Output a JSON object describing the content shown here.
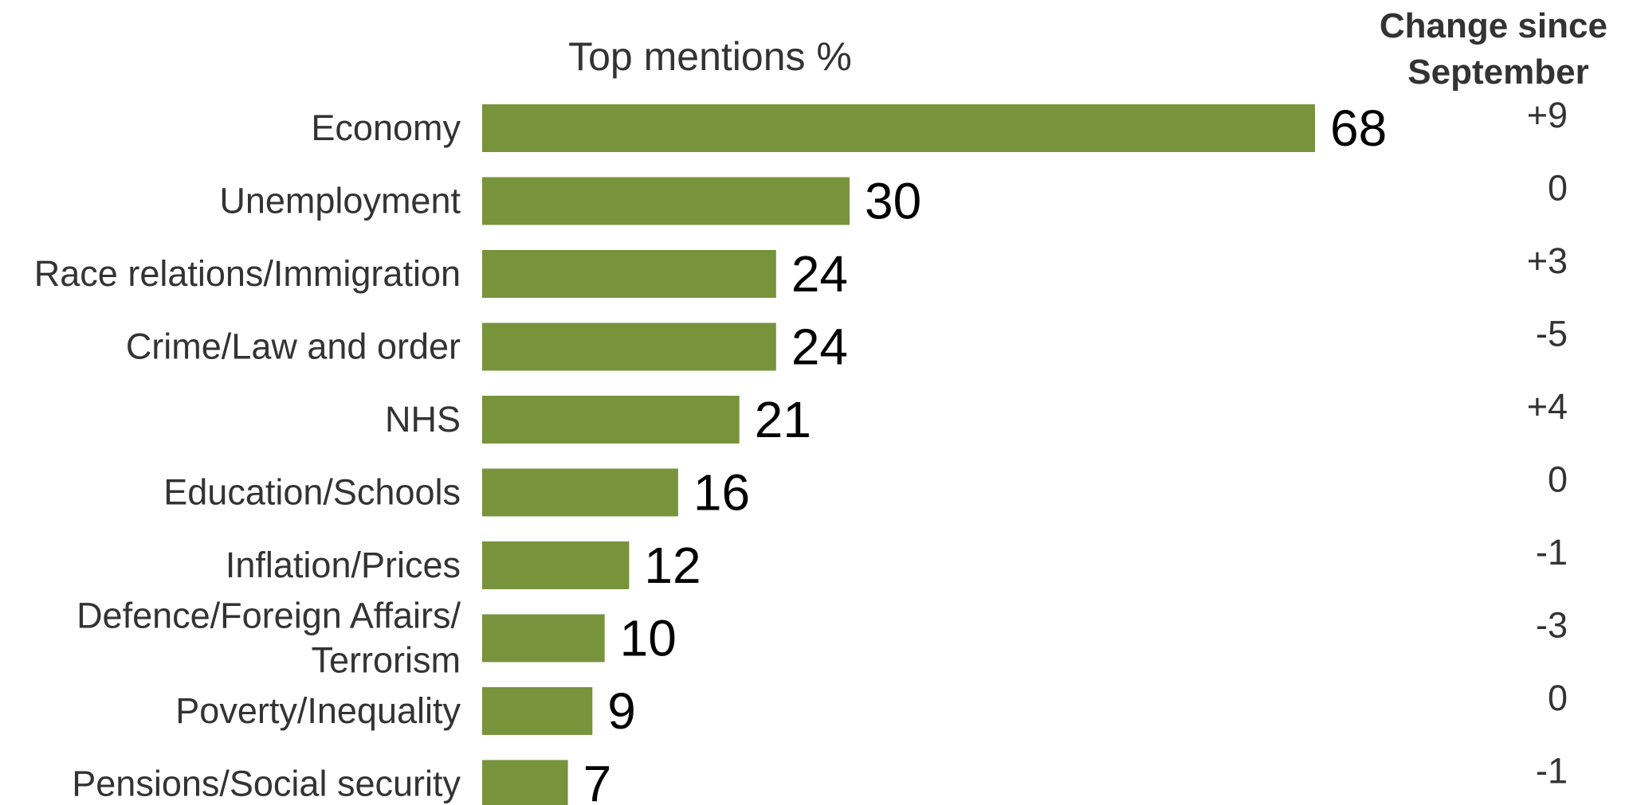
{
  "chart_data": {
    "type": "bar",
    "orientation": "horizontal",
    "title": "Top mentions %",
    "change_header": [
      "Change since",
      "September"
    ],
    "categories": [
      [
        "Economy"
      ],
      [
        "Unemployment"
      ],
      [
        "Race relations/Immigration"
      ],
      [
        "Crime/Law and order"
      ],
      [
        "NHS"
      ],
      [
        "Education/Schools"
      ],
      [
        "Inflation/Prices"
      ],
      [
        "Defence/Foreign Affairs/",
        "Terrorism"
      ],
      [
        "Poverty/Inequality"
      ],
      [
        "Pensions/Social security"
      ]
    ],
    "values": [
      68,
      30,
      24,
      24,
      21,
      16,
      12,
      10,
      9,
      7
    ],
    "changes": [
      "+9",
      "0",
      "+3",
      "-5",
      "+4",
      "0",
      "-1",
      "-3",
      "0",
      "-1"
    ],
    "xlim": [
      0,
      68
    ],
    "bar_color": "#77933c",
    "grid": false,
    "legend": "none"
  }
}
